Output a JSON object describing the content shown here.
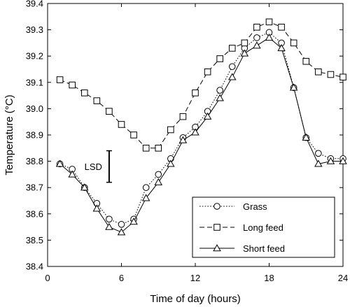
{
  "chart_data": {
    "type": "line",
    "xlabel": "Time of day (hours)",
    "ylabel": "Temperature (°C)",
    "xlim": [
      0,
      24
    ],
    "ylim": [
      38.4,
      39.4
    ],
    "xticks": [
      0,
      6,
      12,
      18,
      24
    ],
    "yticks": [
      38.4,
      38.5,
      38.6,
      38.7,
      38.8,
      38.9,
      39.0,
      39.1,
      39.2,
      39.3,
      39.4
    ],
    "grid": false,
    "legend_position": "bottom-right",
    "lsd": {
      "label": "LSD",
      "x": 5,
      "y_low": 38.72,
      "y_high": 38.84
    },
    "series": [
      {
        "name": "Grass",
        "marker": "circle",
        "dash": "dotted",
        "x": [
          1,
          2,
          3,
          4,
          5,
          6,
          7,
          8,
          9,
          10,
          11,
          12,
          13,
          14,
          15,
          16,
          17,
          18,
          19,
          20,
          21,
          22,
          23,
          24
        ],
        "y": [
          38.79,
          38.77,
          38.7,
          38.64,
          38.58,
          38.56,
          38.58,
          38.7,
          38.75,
          38.81,
          38.89,
          38.93,
          38.99,
          39.07,
          39.16,
          39.23,
          39.27,
          39.29,
          39.25,
          39.08,
          38.89,
          38.83,
          38.81,
          38.81
        ]
      },
      {
        "name": "Long feed",
        "marker": "square",
        "dash": "dashed",
        "x": [
          1,
          2,
          3,
          4,
          5,
          6,
          7,
          8,
          9,
          10,
          11,
          12,
          13,
          14,
          15,
          16,
          17,
          18,
          19,
          20,
          21,
          22,
          23,
          24
        ],
        "y": [
          39.11,
          39.09,
          39.06,
          39.03,
          38.99,
          38.94,
          38.9,
          38.85,
          38.85,
          38.92,
          38.97,
          39.06,
          39.14,
          39.19,
          39.23,
          39.25,
          39.31,
          39.33,
          39.31,
          39.25,
          39.18,
          39.14,
          39.13,
          39.12
        ]
      },
      {
        "name": "Short feed",
        "marker": "triangle",
        "dash": "solid",
        "x": [
          1,
          2,
          3,
          4,
          5,
          6,
          7,
          8,
          9,
          10,
          11,
          12,
          13,
          14,
          15,
          16,
          17,
          18,
          19,
          20,
          21,
          22,
          23,
          24
        ],
        "y": [
          38.79,
          38.75,
          38.7,
          38.62,
          38.55,
          38.53,
          38.57,
          38.66,
          38.72,
          38.79,
          38.88,
          38.91,
          38.97,
          39.04,
          39.12,
          39.21,
          39.24,
          39.27,
          39.23,
          39.08,
          38.89,
          38.79,
          38.8,
          38.8
        ]
      }
    ]
  }
}
